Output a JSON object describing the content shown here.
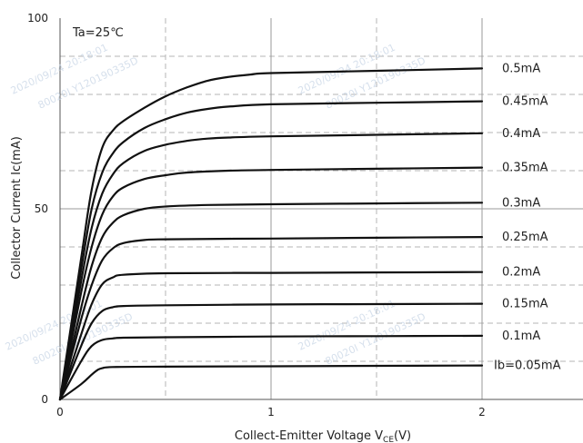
{
  "chart_data": {
    "type": "line",
    "xlabel": "Collect-Emitter Voltage  V",
    "xlabel_sub": "CE",
    "xlabel_unit": "(V)",
    "ylabel": "Collector  Current  Ic(mA)",
    "xlim": [
      0,
      2.5
    ],
    "ylim": [
      0,
      100
    ],
    "x_ticks": [
      "0",
      "1",
      "2"
    ],
    "y_ticks": [
      "0",
      "50",
      "100"
    ],
    "grid": true,
    "annotation": "Ta=25℃",
    "watermarks": [
      "2020/09/24 20:18:01",
      "80020I Y120190335D",
      "2020/09/24 20:18:01",
      "80020I Y120190335D",
      "2020/09/24 20:18:01",
      "80020I Y120190335D",
      "2020/09/24 20:18:01",
      "80020I Y120190335D"
    ],
    "series": [
      {
        "name": "Ib=0.05mA",
        "sat_x": 0.2,
        "x": [
          0,
          0.1,
          0.15,
          0.18,
          0.2,
          0.25,
          0.5,
          1,
          1.5,
          2
        ],
        "values": [
          0,
          4,
          6.5,
          7.8,
          8.2,
          8.5,
          8.6,
          8.7,
          8.8,
          8.9
        ]
      },
      {
        "name": "0.1mA",
        "x": [
          0,
          0.1,
          0.15,
          0.2,
          0.25,
          0.3,
          0.5,
          1,
          1.5,
          2
        ],
        "values": [
          0,
          10,
          14,
          15.6,
          16,
          16.2,
          16.3,
          16.5,
          16.6,
          16.7
        ]
      },
      {
        "name": "0.15mA",
        "x": [
          0,
          0.1,
          0.15,
          0.2,
          0.25,
          0.3,
          0.5,
          1,
          1.5,
          2
        ],
        "values": [
          0,
          14,
          20,
          23.2,
          24.2,
          24.5,
          24.7,
          24.9,
          25.0,
          25.1
        ]
      },
      {
        "name": "0.2mA",
        "x": [
          0,
          0.1,
          0.15,
          0.2,
          0.25,
          0.3,
          0.5,
          1,
          1.5,
          2
        ],
        "values": [
          0,
          17,
          25,
          30.2,
          32,
          32.7,
          33.1,
          33.2,
          33.3,
          33.4
        ]
      },
      {
        "name": "0.25mA",
        "x": [
          0,
          0.1,
          0.15,
          0.2,
          0.25,
          0.3,
          0.4,
          0.5,
          1,
          1.5,
          2
        ],
        "values": [
          0,
          21,
          30,
          36.5,
          39.6,
          41,
          41.8,
          42,
          42.2,
          42.4,
          42.6
        ]
      },
      {
        "name": "0.3mA",
        "x": [
          0,
          0.1,
          0.15,
          0.2,
          0.25,
          0.3,
          0.4,
          0.5,
          0.7,
          1,
          1.5,
          2
        ],
        "values": [
          0,
          24,
          35,
          42.5,
          46.3,
          48.3,
          50,
          50.6,
          51,
          51.2,
          51.4,
          51.6
        ]
      },
      {
        "name": "0.35mA",
        "x": [
          0,
          0.1,
          0.15,
          0.2,
          0.25,
          0.3,
          0.4,
          0.5,
          0.6,
          0.8,
          1,
          1.5,
          2
        ],
        "values": [
          0,
          28,
          40,
          48.5,
          53.2,
          55.6,
          57.8,
          58.8,
          59.5,
          60,
          60.2,
          60.5,
          60.8
        ]
      },
      {
        "name": "0.4mA",
        "x": [
          0,
          0.1,
          0.15,
          0.2,
          0.25,
          0.3,
          0.4,
          0.5,
          0.6,
          0.7,
          0.8,
          1,
          1.5,
          2
        ],
        "values": [
          0,
          31,
          45,
          54,
          59,
          62,
          65.2,
          66.8,
          67.8,
          68.4,
          68.7,
          69,
          69.4,
          69.8
        ]
      },
      {
        "name": "0.45mA",
        "x": [
          0,
          0.1,
          0.15,
          0.2,
          0.25,
          0.3,
          0.4,
          0.5,
          0.6,
          0.7,
          0.8,
          1,
          1.5,
          2
        ],
        "values": [
          0,
          34,
          50,
          59.5,
          64.5,
          67.5,
          71.2,
          73.5,
          75.2,
          76.2,
          76.8,
          77.4,
          77.8,
          78.2
        ]
      },
      {
        "name": "0.5mA",
        "x": [
          0,
          0.1,
          0.15,
          0.2,
          0.25,
          0.3,
          0.4,
          0.5,
          0.6,
          0.7,
          0.8,
          0.9,
          1,
          1.5,
          2
        ],
        "values": [
          0,
          37,
          55,
          66,
          70.5,
          73,
          76.5,
          79.5,
          81.8,
          83.6,
          84.6,
          85.2,
          85.6,
          86.2,
          86.8
        ]
      }
    ]
  }
}
